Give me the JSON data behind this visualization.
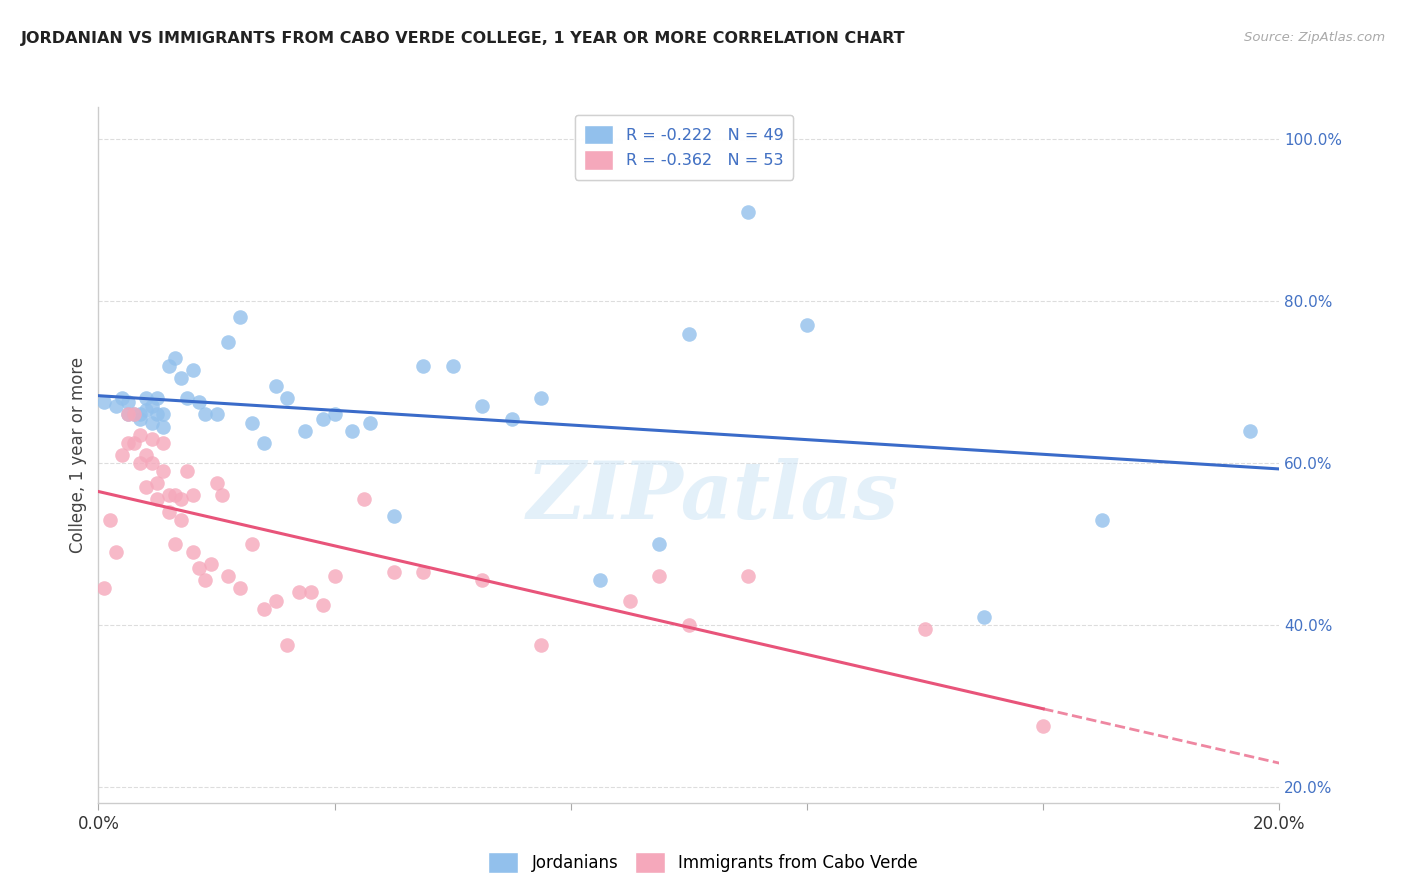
{
  "title": "JORDANIAN VS IMMIGRANTS FROM CABO VERDE COLLEGE, 1 YEAR OR MORE CORRELATION CHART",
  "source": "Source: ZipAtlas.com",
  "ylabel": "College, 1 year or more",
  "xlim": [
    0.0,
    0.2
  ],
  "ylim": [
    0.18,
    1.04
  ],
  "xticks": [
    0.0,
    0.04,
    0.08,
    0.12,
    0.16,
    0.2
  ],
  "xticklabels": [
    "0.0%",
    "",
    "",
    "",
    "",
    "20.0%"
  ],
  "yticks_right": [
    0.2,
    0.4,
    0.6,
    0.8,
    1.0
  ],
  "yticklabels_right": [
    "20.0%",
    "40.0%",
    "60.0%",
    "80.0%",
    "100.0%"
  ],
  "legend_entry1": "R = -0.222   N = 49",
  "legend_entry2": "R = -0.362   N = 53",
  "legend_label1": "Jordanians",
  "legend_label2": "Immigrants from Cabo Verde",
  "color_blue": "#92C0EC",
  "color_pink": "#F5A8BB",
  "line_color_blue": "#3A6BC9",
  "line_color_pink": "#E8547A",
  "right_tick_color": "#4472C4",
  "blue_x": [
    0.001,
    0.003,
    0.004,
    0.005,
    0.005,
    0.006,
    0.007,
    0.007,
    0.008,
    0.008,
    0.009,
    0.009,
    0.01,
    0.01,
    0.011,
    0.011,
    0.012,
    0.013,
    0.014,
    0.015,
    0.016,
    0.017,
    0.018,
    0.02,
    0.022,
    0.024,
    0.026,
    0.028,
    0.03,
    0.032,
    0.035,
    0.038,
    0.04,
    0.043,
    0.046,
    0.05,
    0.055,
    0.06,
    0.065,
    0.07,
    0.075,
    0.085,
    0.095,
    0.1,
    0.11,
    0.12,
    0.15,
    0.17,
    0.195
  ],
  "blue_y": [
    0.675,
    0.67,
    0.68,
    0.675,
    0.66,
    0.66,
    0.66,
    0.655,
    0.68,
    0.665,
    0.67,
    0.65,
    0.68,
    0.66,
    0.66,
    0.645,
    0.72,
    0.73,
    0.705,
    0.68,
    0.715,
    0.675,
    0.66,
    0.66,
    0.75,
    0.78,
    0.65,
    0.625,
    0.695,
    0.68,
    0.64,
    0.655,
    0.66,
    0.64,
    0.65,
    0.535,
    0.72,
    0.72,
    0.67,
    0.655,
    0.68,
    0.455,
    0.5,
    0.76,
    0.91,
    0.77,
    0.41,
    0.53,
    0.64
  ],
  "pink_x": [
    0.001,
    0.002,
    0.003,
    0.004,
    0.005,
    0.005,
    0.006,
    0.006,
    0.007,
    0.007,
    0.008,
    0.008,
    0.009,
    0.009,
    0.01,
    0.01,
    0.011,
    0.011,
    0.012,
    0.012,
    0.013,
    0.013,
    0.014,
    0.014,
    0.015,
    0.016,
    0.016,
    0.017,
    0.018,
    0.019,
    0.02,
    0.021,
    0.022,
    0.024,
    0.026,
    0.028,
    0.03,
    0.032,
    0.034,
    0.036,
    0.038,
    0.04,
    0.045,
    0.05,
    0.055,
    0.065,
    0.075,
    0.09,
    0.095,
    0.1,
    0.11,
    0.14,
    0.16
  ],
  "pink_y": [
    0.445,
    0.53,
    0.49,
    0.61,
    0.66,
    0.625,
    0.66,
    0.625,
    0.635,
    0.6,
    0.61,
    0.57,
    0.63,
    0.6,
    0.575,
    0.555,
    0.625,
    0.59,
    0.56,
    0.54,
    0.56,
    0.5,
    0.555,
    0.53,
    0.59,
    0.56,
    0.49,
    0.47,
    0.455,
    0.475,
    0.575,
    0.56,
    0.46,
    0.445,
    0.5,
    0.42,
    0.43,
    0.375,
    0.44,
    0.44,
    0.425,
    0.46,
    0.555,
    0.465,
    0.465,
    0.455,
    0.375,
    0.43,
    0.46,
    0.4,
    0.46,
    0.395,
    0.275
  ],
  "watermark": "ZIPatlas",
  "background_color": "#ffffff",
  "grid_color": "#dddddd"
}
